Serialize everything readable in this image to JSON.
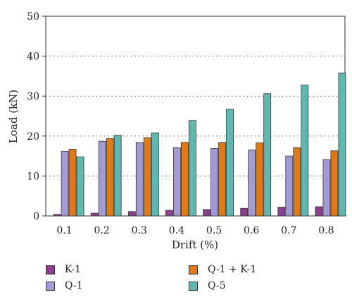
{
  "chart_data": {
    "type": "bar",
    "categories": [
      "0.1",
      "0.2",
      "0.3",
      "0.4",
      "0.5",
      "0.6",
      "0.7",
      "0.8"
    ],
    "series": [
      {
        "name": "K-1",
        "color": "#8a3f8f",
        "values": [
          0.4,
          0.7,
          1.1,
          1.4,
          1.6,
          1.9,
          2.2,
          2.3
        ]
      },
      {
        "name": "Q-1",
        "color": "#a39ad4",
        "values": [
          16.2,
          18.7,
          18.4,
          17.1,
          16.9,
          16.5,
          15.0,
          14.1
        ]
      },
      {
        "name": "Q-1 + K-1",
        "color": "#e07a18",
        "values": [
          16.7,
          19.4,
          19.6,
          18.4,
          18.4,
          18.3,
          17.1,
          16.3
        ]
      },
      {
        "name": "Q-5",
        "color": "#5fb8b0",
        "values": [
          14.8,
          20.2,
          20.8,
          23.9,
          26.7,
          30.6,
          32.8,
          35.8
        ]
      }
    ],
    "xlabel": "Drift (%)",
    "ylabel": "Load (kN)",
    "ylim": [
      0,
      50
    ],
    "yticks": [
      "0",
      "10",
      "20",
      "30",
      "40",
      "50"
    ],
    "grid": "horizontal dotted",
    "legend_position": "bottom"
  }
}
